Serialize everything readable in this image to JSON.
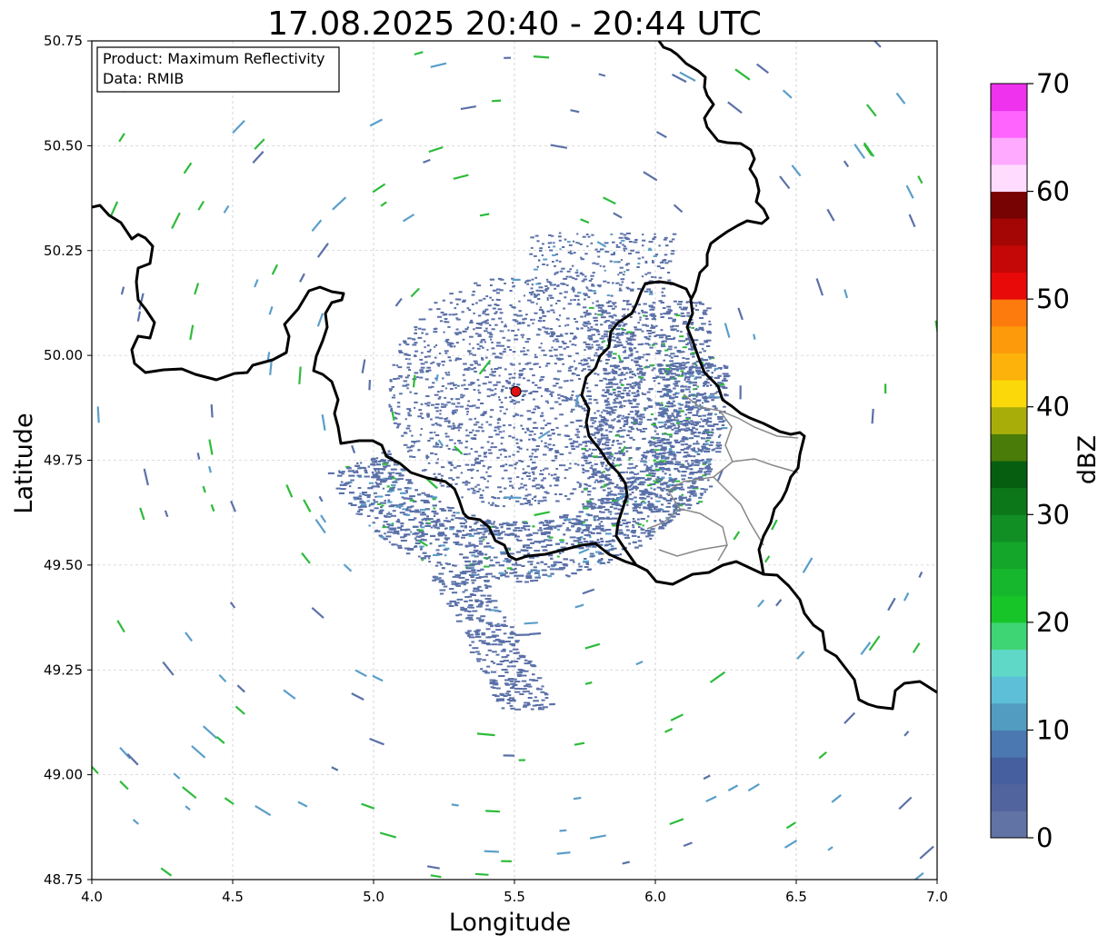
{
  "title": "17.08.2025 20:40 - 20:44 UTC",
  "info_box": {
    "line1": "Product: Maximum Reflectivity",
    "line2": "Data: RMIB"
  },
  "axes": {
    "xlabel": "Longitude",
    "ylabel": "Latitude",
    "xlim": [
      4.0,
      7.0
    ],
    "ylim": [
      48.75,
      50.75
    ],
    "xticks": [
      "4.0",
      "4.5",
      "5.0",
      "5.5",
      "6.0",
      "6.5",
      "7.0"
    ],
    "yticks": [
      "48.75",
      "49.00",
      "49.25",
      "49.50",
      "49.75",
      "50.00",
      "50.25",
      "50.50",
      "50.75"
    ],
    "grid": true
  },
  "colorbar": {
    "label": "dBZ",
    "range": [
      0,
      70
    ],
    "ticks": [
      "0",
      "10",
      "20",
      "30",
      "40",
      "50",
      "60",
      "70"
    ],
    "colors": [
      "#6173a5",
      "#52649e",
      "#46609f",
      "#4b78b0",
      "#529cc2",
      "#5ebfd8",
      "#60d8c8",
      "#3ed575",
      "#17c528",
      "#16b72c",
      "#14a62a",
      "#118f24",
      "#0c7719",
      "#065e11",
      "#4a7c09",
      "#a9ad0a",
      "#fbd80a",
      "#fcb20b",
      "#fc9a0c",
      "#fc7b0c",
      "#e80909",
      "#c40707",
      "#a40505",
      "#780303",
      "#ffdcff",
      "#ffaaff",
      "#ff64ff",
      "#ee32ee"
    ]
  },
  "radar_site": {
    "lon": 5.505,
    "lat": 49.914,
    "color": "#e01010"
  },
  "colors": {
    "echo_main": "#5a70a8",
    "echo_light": "#5a9ec9",
    "echo_green": "#2dbb3b",
    "border": "#000000",
    "admin_border": "#888888",
    "grid": "#bbbbbb"
  }
}
